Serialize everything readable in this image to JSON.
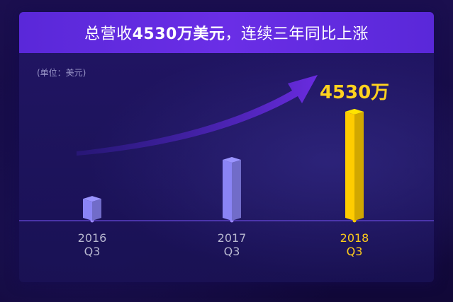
{
  "header": {
    "prefix": "总营收",
    "highlight": "4530万美元",
    "suffix": "，连续三年同比上涨"
  },
  "unit_label": "(单位：美元)",
  "colors": {
    "header": "#6a2ee6",
    "bar_normal": "#8a84f5",
    "bar_highlight": "#ffcc00",
    "arrow": "#6a2be0",
    "axis": "#5a3fc4"
  },
  "chart_data": {
    "type": "bar",
    "title": "总营收4530万美元，连续三年同比上涨",
    "unit": "(单位：美元)",
    "categories": [
      "2016 Q3",
      "2017 Q3",
      "2018 Q3"
    ],
    "category_lines": [
      [
        "2016",
        "Q3"
      ],
      [
        "2017",
        "Q3"
      ],
      [
        "2018",
        "Q3"
      ]
    ],
    "values": [
      1000,
      2580,
      4530
    ],
    "highlight_index": 2,
    "data_labels": [
      "",
      "",
      "4530万"
    ],
    "trend_arrow": true,
    "ylim": [
      0,
      4700
    ]
  }
}
